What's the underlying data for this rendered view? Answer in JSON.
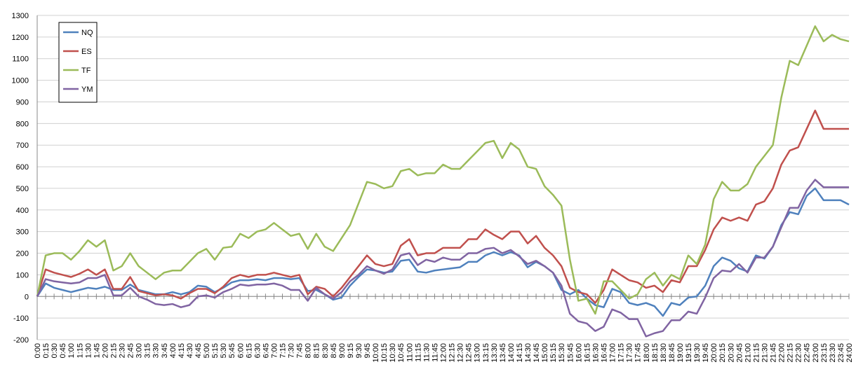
{
  "chart_data": {
    "type": "line",
    "categories": [
      "0:00",
      "0:15",
      "0:30",
      "0:45",
      "1:00",
      "1:15",
      "1:30",
      "1:45",
      "2:00",
      "2:15",
      "2:30",
      "2:45",
      "3:00",
      "3:15",
      "3:30",
      "3:45",
      "4:00",
      "4:15",
      "4:30",
      "4:45",
      "5:00",
      "5:15",
      "5:30",
      "5:45",
      "6:00",
      "6:15",
      "6:30",
      "6:45",
      "7:00",
      "7:15",
      "7:30",
      "7:45",
      "8:00",
      "8:15",
      "8:30",
      "8:45",
      "9:00",
      "9:15",
      "9:30",
      "9:45",
      "10:00",
      "10:15",
      "10:30",
      "10:45",
      "11:00",
      "11:15",
      "11:30",
      "11:45",
      "12:00",
      "12:15",
      "12:30",
      "12:45",
      "13:00",
      "13:15",
      "13:30",
      "13:45",
      "14:00",
      "14:15",
      "14:30",
      "14:45",
      "15:00",
      "15:15",
      "15:30",
      "15:45",
      "16:00",
      "16:15",
      "16:30",
      "16:45",
      "17:00",
      "17:15",
      "17:30",
      "17:45",
      "18:00",
      "18:15",
      "18:30",
      "18:45",
      "19:00",
      "19:15",
      "19:30",
      "19:45",
      "20:00",
      "20:15",
      "20:30",
      "20:45",
      "21:00",
      "21:15",
      "21:30",
      "21:45",
      "22:00",
      "22:15",
      "22:30",
      "22:45",
      "23:00",
      "23:15",
      "23:30",
      "23:45",
      "24:00"
    ],
    "series": [
      {
        "name": "NQ",
        "color": "#4f81bd",
        "values": [
          0,
          60,
          40,
          30,
          20,
          30,
          40,
          35,
          45,
          30,
          30,
          55,
          30,
          20,
          10,
          10,
          20,
          10,
          20,
          50,
          45,
          20,
          40,
          65,
          75,
          75,
          80,
          75,
          85,
          85,
          80,
          85,
          25,
          30,
          10,
          -15,
          -5,
          50,
          90,
          125,
          120,
          110,
          115,
          165,
          170,
          115,
          110,
          120,
          125,
          130,
          135,
          160,
          160,
          190,
          205,
          190,
          205,
          190,
          135,
          160,
          140,
          110,
          30,
          10,
          30,
          -10,
          -40,
          -50,
          35,
          20,
          -30,
          -40,
          -30,
          -45,
          -90,
          -30,
          -40,
          -5,
          0,
          50,
          140,
          180,
          165,
          130,
          115,
          190,
          175,
          230,
          330,
          390,
          380,
          465,
          500,
          445,
          445,
          445,
          425
        ]
      },
      {
        "name": "ES",
        "color": "#c0504d",
        "values": [
          0,
          125,
          110,
          100,
          90,
          105,
          125,
          100,
          125,
          35,
          35,
          90,
          25,
          15,
          5,
          10,
          5,
          -10,
          15,
          35,
          35,
          15,
          45,
          85,
          100,
          90,
          100,
          100,
          110,
          100,
          90,
          100,
          10,
          45,
          35,
          0,
          40,
          90,
          140,
          190,
          150,
          140,
          150,
          235,
          265,
          190,
          200,
          200,
          225,
          225,
          225,
          265,
          265,
          310,
          285,
          265,
          300,
          300,
          245,
          280,
          225,
          190,
          140,
          40,
          20,
          10,
          -30,
          30,
          125,
          100,
          75,
          65,
          40,
          50,
          20,
          75,
          65,
          140,
          140,
          215,
          310,
          365,
          350,
          365,
          350,
          425,
          440,
          500,
          610,
          675,
          690,
          775,
          860,
          775,
          775,
          775,
          775
        ]
      },
      {
        "name": "TF",
        "color": "#9bbb59",
        "values": [
          0,
          190,
          200,
          200,
          170,
          210,
          260,
          230,
          260,
          120,
          140,
          200,
          140,
          110,
          80,
          110,
          120,
          120,
          160,
          200,
          220,
          170,
          225,
          230,
          290,
          270,
          300,
          310,
          340,
          310,
          280,
          290,
          220,
          290,
          230,
          210,
          270,
          330,
          430,
          530,
          520,
          500,
          510,
          580,
          590,
          560,
          570,
          570,
          610,
          590,
          590,
          630,
          670,
          710,
          720,
          640,
          710,
          680,
          600,
          590,
          510,
          470,
          420,
          170,
          -20,
          -10,
          -80,
          70,
          70,
          30,
          -10,
          10,
          80,
          110,
          50,
          100,
          80,
          190,
          150,
          240,
          450,
          530,
          490,
          490,
          520,
          600,
          650,
          700,
          920,
          1090,
          1070,
          1160,
          1250,
          1180,
          1210,
          1190,
          1180
        ]
      },
      {
        "name": "YM",
        "color": "#8064a2",
        "values": [
          0,
          80,
          70,
          65,
          60,
          65,
          85,
          85,
          100,
          5,
          5,
          40,
          0,
          -15,
          -35,
          -40,
          -35,
          -50,
          -40,
          0,
          5,
          -5,
          20,
          35,
          55,
          50,
          55,
          55,
          60,
          50,
          30,
          30,
          -20,
          40,
          10,
          -10,
          20,
          70,
          100,
          140,
          120,
          105,
          125,
          190,
          200,
          145,
          170,
          160,
          180,
          170,
          170,
          200,
          200,
          220,
          225,
          200,
          215,
          185,
          150,
          165,
          140,
          110,
          50,
          -80,
          -115,
          -125,
          -160,
          -140,
          -60,
          -75,
          -105,
          -105,
          -185,
          -170,
          -160,
          -110,
          -110,
          -70,
          -80,
          -5,
          85,
          120,
          115,
          150,
          110,
          180,
          180,
          230,
          320,
          410,
          410,
          490,
          540,
          505,
          505,
          505,
          505
        ]
      }
    ],
    "ylim": [
      -200,
      1300
    ],
    "yticks": [
      -200,
      -100,
      0,
      100,
      200,
      300,
      400,
      500,
      600,
      700,
      800,
      900,
      1000,
      1100,
      1200,
      1300
    ],
    "grid": true,
    "legend": "top-left"
  }
}
